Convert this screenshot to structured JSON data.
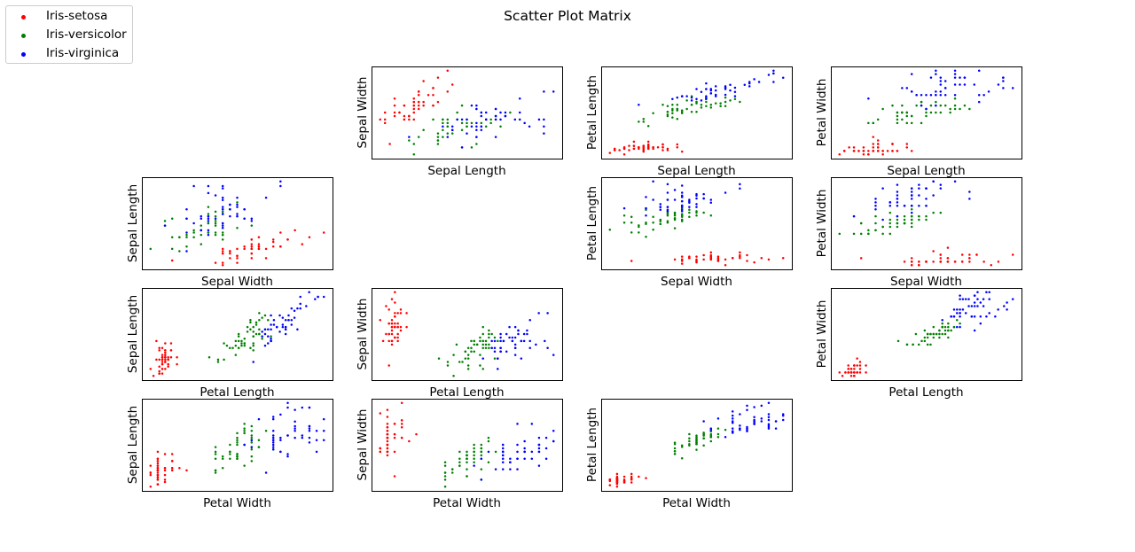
{
  "chart_data": {
    "type": "scatter",
    "title": "Scatter Plot Matrix",
    "axes_ticks_visible": false,
    "grid": false,
    "legend_position": "top-left",
    "variables": [
      "Sepal Length",
      "Sepal Width",
      "Petal Length",
      "Petal Width"
    ],
    "series": [
      {
        "name": "Iris-setosa",
        "color": "#ff0000",
        "values": [
          [
            5.1,
            3.5,
            1.4,
            0.2
          ],
          [
            4.9,
            3.0,
            1.4,
            0.2
          ],
          [
            4.7,
            3.2,
            1.3,
            0.2
          ],
          [
            4.6,
            3.1,
            1.5,
            0.2
          ],
          [
            5.0,
            3.6,
            1.4,
            0.2
          ],
          [
            5.4,
            3.9,
            1.7,
            0.4
          ],
          [
            4.6,
            3.4,
            1.4,
            0.3
          ],
          [
            5.0,
            3.4,
            1.5,
            0.2
          ],
          [
            4.4,
            2.9,
            1.4,
            0.2
          ],
          [
            4.9,
            3.1,
            1.5,
            0.1
          ],
          [
            5.4,
            3.7,
            1.5,
            0.2
          ],
          [
            4.8,
            3.4,
            1.6,
            0.2
          ],
          [
            4.8,
            3.0,
            1.4,
            0.1
          ],
          [
            4.3,
            3.0,
            1.1,
            0.1
          ],
          [
            5.8,
            4.0,
            1.2,
            0.2
          ],
          [
            5.7,
            4.4,
            1.5,
            0.4
          ],
          [
            5.4,
            3.9,
            1.3,
            0.4
          ],
          [
            5.1,
            3.5,
            1.4,
            0.3
          ],
          [
            5.7,
            3.8,
            1.7,
            0.3
          ],
          [
            5.1,
            3.8,
            1.5,
            0.3
          ],
          [
            5.4,
            3.4,
            1.7,
            0.2
          ],
          [
            5.1,
            3.7,
            1.5,
            0.4
          ],
          [
            4.6,
            3.6,
            1.0,
            0.2
          ],
          [
            5.1,
            3.3,
            1.7,
            0.5
          ],
          [
            4.8,
            3.4,
            1.9,
            0.2
          ],
          [
            5.0,
            3.0,
            1.6,
            0.2
          ],
          [
            5.0,
            3.4,
            1.6,
            0.4
          ],
          [
            5.2,
            3.5,
            1.5,
            0.2
          ],
          [
            5.2,
            3.4,
            1.4,
            0.2
          ],
          [
            4.7,
            3.2,
            1.6,
            0.2
          ],
          [
            4.8,
            3.1,
            1.6,
            0.2
          ],
          [
            5.4,
            3.4,
            1.5,
            0.4
          ],
          [
            5.2,
            4.1,
            1.5,
            0.1
          ],
          [
            5.5,
            4.2,
            1.4,
            0.2
          ],
          [
            4.9,
            3.1,
            1.5,
            0.1
          ],
          [
            5.0,
            3.2,
            1.2,
            0.2
          ],
          [
            5.5,
            3.5,
            1.3,
            0.2
          ],
          [
            4.9,
            3.1,
            1.5,
            0.1
          ],
          [
            4.4,
            3.0,
            1.3,
            0.2
          ],
          [
            5.1,
            3.4,
            1.5,
            0.2
          ],
          [
            5.0,
            3.5,
            1.3,
            0.3
          ],
          [
            4.5,
            2.3,
            1.3,
            0.3
          ],
          [
            4.4,
            3.2,
            1.3,
            0.2
          ],
          [
            5.0,
            3.5,
            1.6,
            0.6
          ],
          [
            5.1,
            3.8,
            1.9,
            0.4
          ],
          [
            4.8,
            3.0,
            1.4,
            0.3
          ],
          [
            5.1,
            3.8,
            1.6,
            0.2
          ],
          [
            4.6,
            3.2,
            1.4,
            0.2
          ],
          [
            5.3,
            3.7,
            1.5,
            0.2
          ],
          [
            5.0,
            3.3,
            1.4,
            0.2
          ]
        ]
      },
      {
        "name": "Iris-versicolor",
        "color": "#008000",
        "values": [
          [
            7.0,
            3.2,
            4.7,
            1.4
          ],
          [
            6.4,
            3.2,
            4.5,
            1.5
          ],
          [
            6.9,
            3.1,
            4.9,
            1.5
          ],
          [
            5.5,
            2.3,
            4.0,
            1.3
          ],
          [
            6.5,
            2.8,
            4.6,
            1.5
          ],
          [
            5.7,
            2.8,
            4.5,
            1.3
          ],
          [
            6.3,
            3.3,
            4.7,
            1.6
          ],
          [
            4.9,
            2.4,
            3.3,
            1.0
          ],
          [
            6.6,
            2.9,
            4.6,
            1.3
          ],
          [
            5.2,
            2.7,
            3.9,
            1.4
          ],
          [
            5.0,
            2.0,
            3.5,
            1.0
          ],
          [
            5.9,
            3.0,
            4.2,
            1.5
          ],
          [
            6.0,
            2.2,
            4.0,
            1.0
          ],
          [
            6.1,
            2.9,
            4.7,
            1.4
          ],
          [
            5.6,
            2.9,
            3.6,
            1.3
          ],
          [
            6.7,
            3.1,
            4.4,
            1.4
          ],
          [
            5.6,
            3.0,
            4.5,
            1.5
          ],
          [
            5.8,
            2.7,
            4.1,
            1.0
          ],
          [
            6.2,
            2.2,
            4.5,
            1.5
          ],
          [
            5.6,
            2.5,
            3.9,
            1.1
          ],
          [
            5.9,
            3.2,
            4.8,
            1.8
          ],
          [
            6.1,
            2.8,
            4.0,
            1.3
          ],
          [
            6.3,
            2.5,
            4.9,
            1.5
          ],
          [
            6.1,
            2.8,
            4.7,
            1.2
          ],
          [
            6.4,
            2.9,
            4.3,
            1.3
          ],
          [
            6.6,
            3.0,
            4.4,
            1.4
          ],
          [
            6.8,
            2.8,
            4.8,
            1.4
          ],
          [
            6.7,
            3.0,
            5.0,
            1.7
          ],
          [
            6.0,
            2.9,
            4.5,
            1.5
          ],
          [
            5.7,
            2.6,
            3.5,
            1.0
          ],
          [
            5.5,
            2.4,
            3.8,
            1.1
          ],
          [
            5.5,
            2.4,
            3.7,
            1.0
          ],
          [
            5.8,
            2.7,
            3.9,
            1.2
          ],
          [
            6.0,
            2.7,
            5.1,
            1.6
          ],
          [
            5.4,
            3.0,
            4.5,
            1.5
          ],
          [
            6.0,
            3.4,
            4.5,
            1.6
          ],
          [
            6.7,
            3.1,
            4.7,
            1.5
          ],
          [
            6.3,
            2.3,
            4.4,
            1.3
          ],
          [
            5.6,
            3.0,
            4.1,
            1.3
          ],
          [
            5.5,
            2.5,
            4.0,
            1.3
          ],
          [
            5.5,
            2.6,
            4.4,
            1.2
          ],
          [
            6.1,
            3.0,
            4.6,
            1.4
          ],
          [
            5.8,
            2.6,
            4.0,
            1.2
          ],
          [
            5.0,
            2.3,
            3.3,
            1.0
          ],
          [
            5.6,
            2.7,
            4.2,
            1.3
          ],
          [
            5.7,
            3.0,
            4.2,
            1.2
          ],
          [
            5.7,
            2.9,
            4.2,
            1.3
          ],
          [
            6.2,
            2.9,
            4.3,
            1.3
          ],
          [
            5.1,
            2.5,
            3.0,
            1.1
          ],
          [
            5.7,
            2.8,
            4.1,
            1.3
          ]
        ]
      },
      {
        "name": "Iris-virginica",
        "color": "#0000ff",
        "values": [
          [
            6.3,
            3.3,
            6.0,
            2.5
          ],
          [
            5.8,
            2.7,
            5.1,
            1.9
          ],
          [
            7.1,
            3.0,
            5.9,
            2.1
          ],
          [
            6.3,
            2.9,
            5.6,
            1.8
          ],
          [
            6.5,
            3.0,
            5.8,
            2.2
          ],
          [
            7.6,
            3.0,
            6.6,
            2.1
          ],
          [
            4.9,
            2.5,
            4.5,
            1.7
          ],
          [
            7.3,
            2.9,
            6.3,
            1.8
          ],
          [
            6.7,
            2.5,
            5.8,
            1.8
          ],
          [
            7.2,
            3.6,
            6.1,
            2.5
          ],
          [
            6.5,
            3.2,
            5.1,
            2.0
          ],
          [
            6.4,
            2.7,
            5.3,
            1.9
          ],
          [
            6.8,
            3.0,
            5.5,
            2.1
          ],
          [
            5.7,
            2.5,
            5.0,
            2.0
          ],
          [
            5.8,
            2.8,
            5.1,
            2.4
          ],
          [
            6.4,
            3.2,
            5.3,
            2.3
          ],
          [
            6.5,
            3.0,
            5.5,
            1.8
          ],
          [
            7.7,
            3.8,
            6.7,
            2.2
          ],
          [
            7.7,
            2.6,
            6.9,
            2.3
          ],
          [
            6.0,
            2.2,
            5.0,
            1.5
          ],
          [
            6.9,
            3.2,
            5.7,
            2.3
          ],
          [
            5.6,
            2.8,
            4.9,
            2.0
          ],
          [
            7.7,
            2.8,
            6.7,
            2.0
          ],
          [
            6.3,
            2.7,
            4.9,
            1.8
          ],
          [
            6.7,
            3.3,
            5.7,
            2.1
          ],
          [
            7.2,
            3.2,
            6.0,
            1.8
          ],
          [
            6.2,
            2.8,
            4.8,
            1.8
          ],
          [
            6.1,
            3.0,
            4.9,
            1.8
          ],
          [
            6.4,
            2.8,
            5.6,
            2.1
          ],
          [
            7.2,
            3.0,
            5.8,
            1.6
          ],
          [
            7.4,
            2.8,
            6.1,
            1.9
          ],
          [
            7.9,
            3.8,
            6.4,
            2.0
          ],
          [
            6.4,
            2.8,
            5.6,
            2.2
          ],
          [
            6.3,
            2.8,
            5.1,
            1.5
          ],
          [
            6.1,
            2.6,
            5.6,
            1.4
          ],
          [
            7.7,
            3.0,
            6.1,
            2.3
          ],
          [
            6.3,
            3.4,
            5.6,
            2.4
          ],
          [
            6.4,
            3.1,
            5.5,
            1.8
          ],
          [
            6.0,
            3.0,
            4.8,
            1.8
          ],
          [
            6.9,
            3.1,
            5.4,
            2.1
          ],
          [
            6.7,
            3.1,
            5.6,
            2.4
          ],
          [
            6.9,
            3.1,
            5.1,
            2.3
          ],
          [
            5.8,
            2.7,
            5.1,
            1.9
          ],
          [
            6.8,
            3.2,
            5.9,
            2.3
          ],
          [
            6.7,
            3.3,
            5.7,
            2.5
          ],
          [
            6.7,
            3.0,
            5.2,
            2.3
          ],
          [
            6.3,
            2.5,
            5.0,
            1.9
          ],
          [
            6.5,
            3.0,
            5.2,
            2.0
          ],
          [
            6.2,
            3.4,
            5.4,
            2.3
          ],
          [
            5.9,
            3.0,
            5.1,
            1.8
          ]
        ]
      }
    ]
  }
}
